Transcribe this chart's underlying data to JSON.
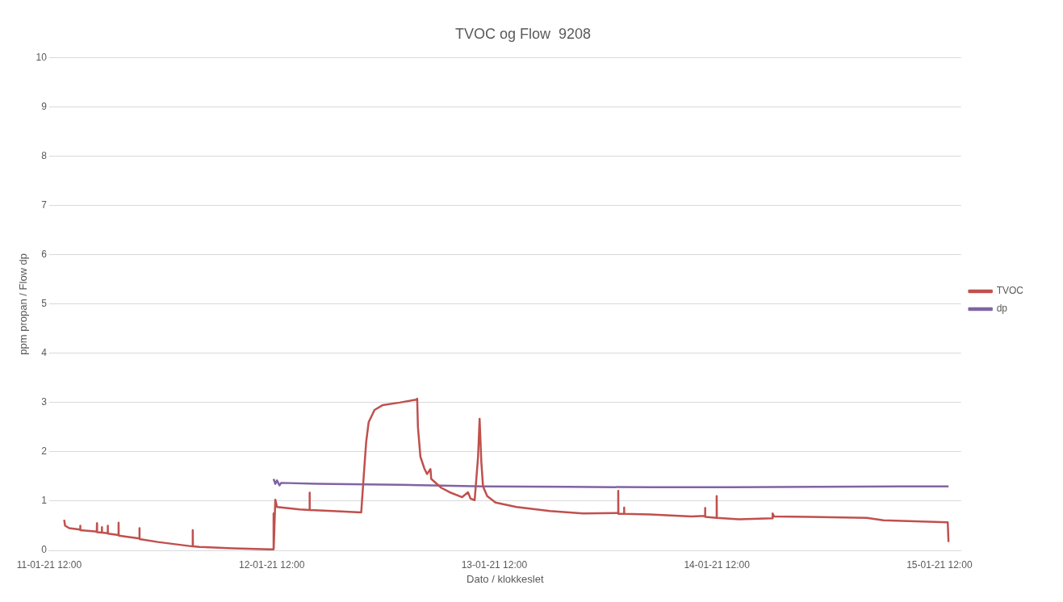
{
  "chart_data": {
    "type": "line",
    "title": "TVOC og Flow  9208",
    "xlabel": "Dato / klokkeslet",
    "ylabel": "ppm propan / Flow dp",
    "xlim": [
      "--01-11T12:00",
      "--01-15T14:20"
    ],
    "xticks": [
      {
        "value": "--01-11T12:00",
        "label": "11-01-21 12:00"
      },
      {
        "value": "--01-12T12:00",
        "label": "12-01-21 12:00"
      },
      {
        "value": "--01-13T12:00",
        "label": "13-01-21 12:00"
      },
      {
        "value": "--01-14T12:00",
        "label": "14-01-21 12:00"
      },
      {
        "value": "--01-15T12:00",
        "label": "15-01-21 12:00"
      }
    ],
    "ylim": [
      0,
      10
    ],
    "yticks": [
      0,
      1,
      2,
      3,
      4,
      5,
      6,
      7,
      8,
      9,
      10
    ],
    "grid": "y",
    "legend": "right",
    "marker": "none",
    "line_style": "solid",
    "series": [
      {
        "name": "TVOC",
        "color": "#c0504d",
        "x": [
          "--01-11T13:37",
          "--01-11T13:43",
          "--01-11T14:10",
          "--01-11T15:20",
          "--01-11T15:21",
          "--01-11T15:22",
          "--01-11T17:08",
          "--01-11T17:09",
          "--01-11T17:10",
          "--01-11T17:40",
          "--01-11T17:41",
          "--01-11T17:42",
          "--01-11T18:18",
          "--01-11T18:19",
          "--01-11T18:20",
          "--01-11T19:28",
          "--01-11T19:29",
          "--01-11T19:30",
          "--01-11T21:43",
          "--01-11T21:44",
          "--01-11T21:45",
          "--01-11T23:42",
          "--01-12T03:28",
          "--01-12T03:29",
          "--01-12T03:30",
          "--01-12T04:12",
          "--01-12T07:48",
          "--01-12T11:50",
          "--01-12T12:11",
          "--01-12T12:12",
          "--01-12T12:13",
          "--01-12T12:23",
          "--01-12T12:34",
          "--01-12T14:59",
          "--01-12T16:04",
          "--01-12T16:05",
          "--01-12T16:06",
          "--01-12T18:35",
          "--01-12T21:39",
          "--01-12T21:55",
          "--01-12T22:11",
          "--01-12T22:27",
          "--01-12T23:05",
          "--01-12T23:59",
          "--01-13T01:47",
          "--01-13T03:35",
          "--01-13T03:41",
          "--01-13T03:46",
          "--01-13T04:02",
          "--01-13T04:29",
          "--01-13T04:45",
          "--01-13T05:07",
          "--01-13T05:12",
          "--01-13T06:17",
          "--01-13T07:11",
          "--01-13T08:32",
          "--01-13T09:10",
          "--01-13T09:26",
          "--01-13T09:53",
          "--01-13T10:15",
          "--01-13T10:25",
          "--01-13T10:36",
          "--01-13T10:47",
          "--01-13T11:14",
          "--01-13T12:08",
          "--01-13T14:23",
          "--01-13T17:59",
          "--01-13T21:35",
          "--01-14T01:21",
          "--01-14T01:22",
          "--01-14T01:23",
          "--01-14T01:59",
          "--01-14T02:00",
          "--01-14T02:01",
          "--01-14T04:47",
          "--01-14T09:16",
          "--01-14T10:43",
          "--01-14T10:44",
          "--01-14T10:45",
          "--01-14T11:58",
          "--01-14T11:59",
          "--01-14T12:00",
          "--01-14T14:24",
          "--01-14T18:00",
          "--01-14T18:01",
          "--01-14T18:10",
          "--01-14T21:52",
          "--01-15T04:10",
          "--01-15T05:58",
          "--01-15T12:54",
          "--01-15T12:59"
        ],
        "values": [
          0.62,
          0.5,
          0.45,
          0.42,
          0.5,
          0.41,
          0.38,
          0.55,
          0.37,
          0.36,
          0.47,
          0.36,
          0.35,
          0.5,
          0.34,
          0.31,
          0.56,
          0.3,
          0.24,
          0.45,
          0.23,
          0.17,
          0.08,
          0.41,
          0.08,
          0.07,
          0.04,
          0.02,
          0.02,
          0.75,
          0.05,
          1.03,
          0.88,
          0.83,
          0.82,
          1.17,
          0.82,
          0.8,
          0.77,
          1.5,
          2.2,
          2.6,
          2.85,
          2.95,
          3.0,
          3.06,
          3.08,
          2.5,
          1.9,
          1.65,
          1.55,
          1.65,
          1.45,
          1.27,
          1.18,
          1.08,
          1.18,
          1.05,
          1.02,
          1.9,
          2.67,
          1.8,
          1.3,
          1.1,
          0.97,
          0.88,
          0.8,
          0.75,
          0.76,
          1.21,
          0.74,
          0.74,
          0.87,
          0.74,
          0.73,
          0.69,
          0.7,
          0.86,
          0.68,
          0.66,
          1.1,
          0.66,
          0.63,
          0.65,
          0.75,
          0.69,
          0.68,
          0.66,
          0.61,
          0.57,
          0.17
        ]
      },
      {
        "name": "dp",
        "color": "#8064a2",
        "x": [
          "--01-12T12:12",
          "--01-12T12:23",
          "--01-12T12:34",
          "--01-12T12:50",
          "--01-12T13:01",
          "--01-12T16:47",
          "--01-13T01:47",
          "--01-13T10:47",
          "--01-13T19:47",
          "--01-14T04:47",
          "--01-14T13:46",
          "--01-14T22:46",
          "--01-15T07:46",
          "--01-15T12:59"
        ],
        "values": [
          1.45,
          1.35,
          1.42,
          1.32,
          1.37,
          1.35,
          1.33,
          1.3,
          1.29,
          1.28,
          1.28,
          1.29,
          1.3,
          1.3
        ]
      }
    ]
  }
}
